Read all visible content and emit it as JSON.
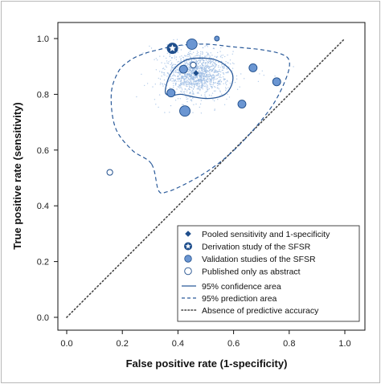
{
  "chart_data": {
    "type": "scatter",
    "xlabel": "False positive rate (1-specificity)",
    "ylabel": "True positive rate (sensitivity)",
    "xlim": [
      0,
      1
    ],
    "ylim": [
      0,
      1
    ],
    "x_ticks": [
      "0.0",
      "0.2",
      "0.4",
      "0.6",
      "0.8",
      "1.0"
    ],
    "y_ticks": [
      "0.0",
      "0.2",
      "0.4",
      "0.6",
      "0.8",
      "1.0"
    ],
    "colors": {
      "marker": "#6b96d2",
      "marker_edge": "#1f4e8c",
      "line": "#2a5a9a",
      "diagonal": "#444444",
      "cloud": "#9bbbe3"
    },
    "pooled_estimate": {
      "x": 0.465,
      "y": 0.876
    },
    "derivation_study": {
      "x": 0.38,
      "y": 0.965
    },
    "validation_studies": [
      {
        "x": 0.45,
        "y": 0.98,
        "size": "large"
      },
      {
        "x": 0.54,
        "y": 1.0,
        "size": "small"
      },
      {
        "x": 0.42,
        "y": 0.89,
        "size": "medium"
      },
      {
        "x": 0.67,
        "y": 0.895,
        "size": "medium"
      },
      {
        "x": 0.755,
        "y": 0.845,
        "size": "medium"
      },
      {
        "x": 0.375,
        "y": 0.805,
        "size": "medium"
      },
      {
        "x": 0.63,
        "y": 0.765,
        "size": "medium"
      },
      {
        "x": 0.425,
        "y": 0.74,
        "size": "large"
      }
    ],
    "published_as_abstract": [
      {
        "x": 0.155,
        "y": 0.52
      },
      {
        "x": 0.455,
        "y": 0.905
      }
    ],
    "confidence_area": [
      [
        0.355,
        0.805
      ],
      [
        0.36,
        0.84
      ],
      [
        0.375,
        0.875
      ],
      [
        0.4,
        0.905
      ],
      [
        0.435,
        0.925
      ],
      [
        0.48,
        0.93
      ],
      [
        0.53,
        0.925
      ],
      [
        0.57,
        0.905
      ],
      [
        0.595,
        0.875
      ],
      [
        0.595,
        0.84
      ],
      [
        0.575,
        0.805
      ],
      [
        0.545,
        0.79
      ],
      [
        0.505,
        0.785
      ],
      [
        0.46,
        0.79
      ],
      [
        0.41,
        0.8
      ],
      [
        0.375,
        0.795
      ],
      [
        0.355,
        0.805
      ]
    ],
    "prediction_area": [
      [
        0.305,
        0.55
      ],
      [
        0.235,
        0.6
      ],
      [
        0.175,
        0.68
      ],
      [
        0.16,
        0.8
      ],
      [
        0.185,
        0.88
      ],
      [
        0.225,
        0.92
      ],
      [
        0.275,
        0.945
      ],
      [
        0.33,
        0.96
      ],
      [
        0.4,
        0.975
      ],
      [
        0.5,
        0.98
      ],
      [
        0.6,
        0.97
      ],
      [
        0.7,
        0.96
      ],
      [
        0.77,
        0.945
      ],
      [
        0.8,
        0.92
      ],
      [
        0.79,
        0.86
      ],
      [
        0.74,
        0.76
      ],
      [
        0.66,
        0.66
      ],
      [
        0.58,
        0.58
      ],
      [
        0.5,
        0.52
      ],
      [
        0.42,
        0.475
      ],
      [
        0.36,
        0.45
      ],
      [
        0.33,
        0.455
      ],
      [
        0.305,
        0.55
      ]
    ],
    "legend": {
      "placement": "bottom-right",
      "items": [
        {
          "label": "Pooled sensitivity and 1-specificity",
          "symbol": "diamond"
        },
        {
          "label": "Derivation study of the SFSR",
          "symbol": "star"
        },
        {
          "label": "Validation studies of the SFSR",
          "symbol": "filled-circle"
        },
        {
          "label": "Published only as abstract",
          "symbol": "open-circle"
        },
        {
          "label": "95% confidence area",
          "symbol": "solid-line"
        },
        {
          "label": "95% prediction area",
          "symbol": "dashed-line"
        },
        {
          "label": "Absence of predictive accuracy",
          "symbol": "dotted-line"
        }
      ]
    }
  }
}
